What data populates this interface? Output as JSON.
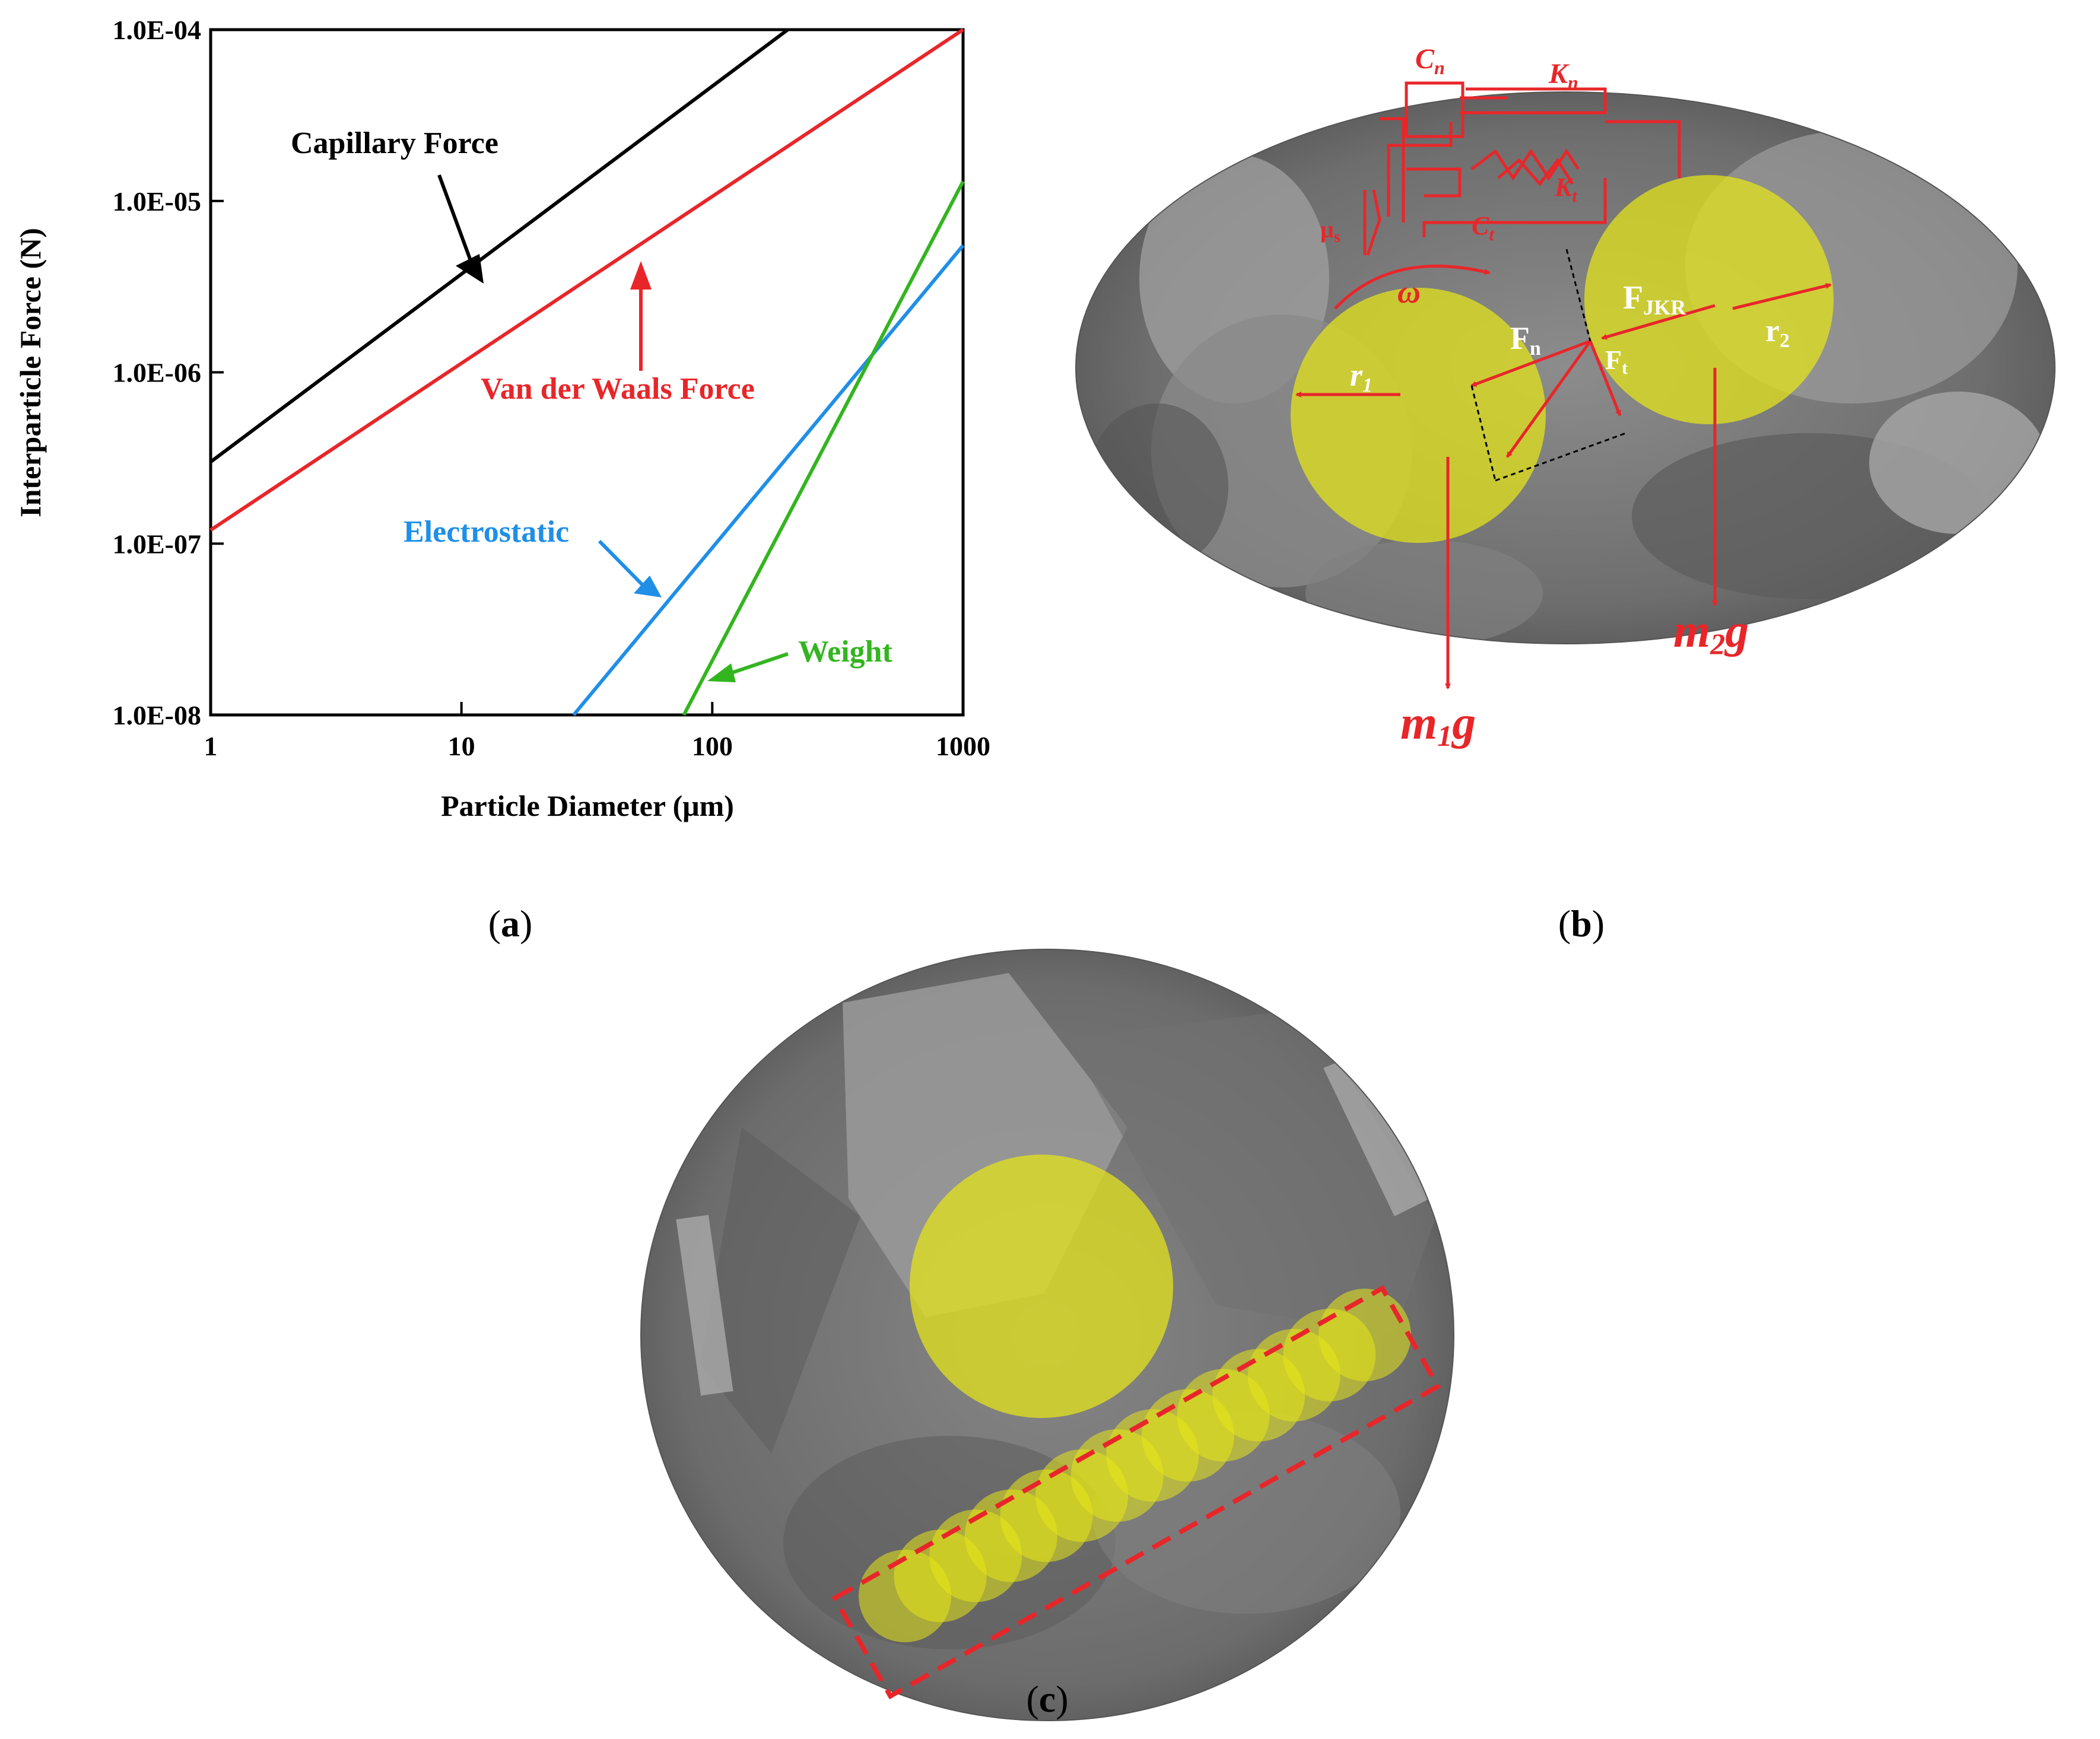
{
  "chart_data": {
    "type": "line",
    "xscale": "log",
    "yscale": "log",
    "xlabel": "Particle Diameter (μm)",
    "ylabel": "Interparticle Force (N)",
    "xlim": [
      1,
      1000
    ],
    "ylim": [
      1e-08,
      0.0001
    ],
    "xticks": [
      "1",
      "10",
      "100",
      "1000"
    ],
    "yticks": [
      "1.0E-08",
      "1.0E-07",
      "1.0E-06",
      "1.0E-05",
      "1.0E-04"
    ],
    "grid": false,
    "legend": "none",
    "series": [
      {
        "name": "Capillary Force",
        "color": "#000000",
        "x": [
          1,
          200
        ],
        "y": [
          3e-07,
          0.0001
        ]
      },
      {
        "name": "Van der Waals Force",
        "color": "#e8262a",
        "x": [
          1,
          1000
        ],
        "y": [
          1.2e-07,
          0.0001
        ]
      },
      {
        "name": "Electrostatic",
        "color": "#1f8fe8",
        "x": [
          28,
          1000
        ],
        "y": [
          1e-08,
          5.5e-06
        ]
      },
      {
        "name": "Weight",
        "color": "#33b51f",
        "x": [
          77,
          1000
        ],
        "y": [
          1e-08,
          1.3e-05
        ]
      }
    ]
  },
  "panels": {
    "a": {
      "label": "(a)",
      "letter": "a"
    },
    "b": {
      "label": "(b)",
      "letter": "b"
    },
    "c": {
      "label": "(c)",
      "letter": "c"
    }
  },
  "diagram_b": {
    "labels": {
      "cn": "C",
      "cn_sub": "n",
      "kn": "K",
      "kn_sub": "n",
      "kt": "K",
      "kt_sub": "t",
      "ct": "C",
      "ct_sub": "t",
      "mus": "μ",
      "mus_sub": "s",
      "omega": "ω",
      "fjkr": "F",
      "fjkr_sub": "JKR",
      "fn": "F",
      "fn_sub": "n",
      "ft": "F",
      "ft_sub": "t",
      "r1": "r",
      "r1_sub": "1",
      "r2": "r",
      "r2_sub": "2",
      "m1g_a": "m",
      "m1g_sub": "1",
      "m1g_b": "g",
      "m2g_a": "m",
      "m2g_sub": "2",
      "m2g_b": "g"
    }
  },
  "colors": {
    "capillary": "#000000",
    "vdw": "#e8262a",
    "electrostatic": "#1f8fe8",
    "weight": "#33b51f",
    "particle": "#e6e617",
    "annotation": "#e8262a",
    "sem_gray": "#7a7a7a"
  }
}
